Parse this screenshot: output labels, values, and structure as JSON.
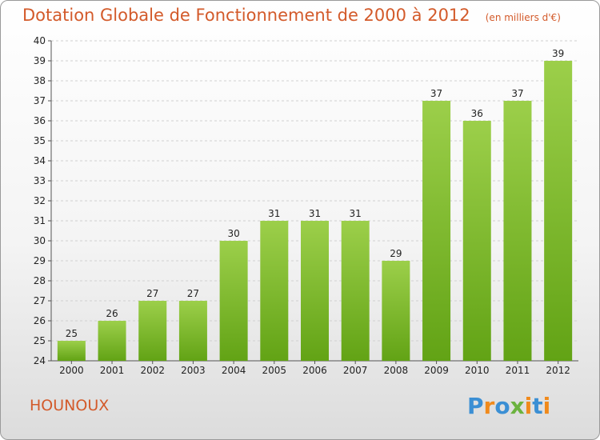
{
  "header": {
    "title": "Dotation Globale de Fonctionnement de 2000 à 2012",
    "unit": "(en milliers d'€)"
  },
  "footer": {
    "commune": "HOUNOUX",
    "logo_text": "Proxiti"
  },
  "colors": {
    "title": "#d35a2a",
    "bar_light": "#9ccf4a",
    "bar_dark": "#62a315",
    "grid": "#d0d0d0",
    "axis_text": "#222222"
  },
  "chart_data": {
    "type": "bar",
    "title": "Dotation Globale de Fonctionnement de 2000 à 2012",
    "subtitle": "(en milliers d'€)",
    "categories": [
      "2000",
      "2001",
      "2002",
      "2003",
      "2004",
      "2005",
      "2006",
      "2007",
      "2008",
      "2009",
      "2010",
      "2011",
      "2012"
    ],
    "values": [
      25,
      26,
      27,
      27,
      30,
      31,
      31,
      31,
      29,
      37,
      36,
      37,
      39
    ],
    "ylim": [
      24,
      40
    ],
    "yticks": [
      24,
      25,
      26,
      27,
      28,
      29,
      30,
      31,
      32,
      33,
      34,
      35,
      36,
      37,
      38,
      39,
      40
    ],
    "grid": true,
    "data_labels": true
  }
}
